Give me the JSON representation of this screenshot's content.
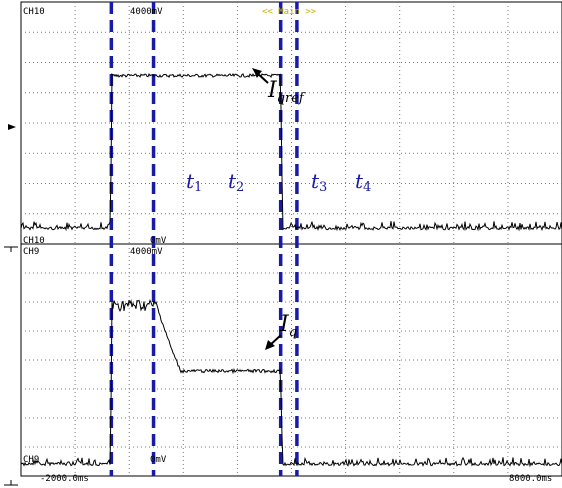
{
  "header": {
    "mode": "<< Main >>"
  },
  "chart_data": [
    {
      "type": "line",
      "channel": "CH10",
      "scale_label": "4000mV",
      "zero_label": "0mV",
      "annotation": {
        "symbol": "I",
        "sub": "qref"
      },
      "ylim": [
        0,
        1
      ],
      "xlim": [
        -2000,
        8000
      ],
      "x": [
        -2000,
        -340,
        -330,
        2800,
        2810,
        2840,
        8000
      ],
      "values": [
        0.02,
        0.02,
        0.85,
        0.85,
        0.55,
        0.02,
        0.02
      ]
    },
    {
      "type": "line",
      "channel": "CH9",
      "scale_label": "4000mV",
      "zero_label": "0mV",
      "annotation": {
        "symbol": "I",
        "sub": "q"
      },
      "ylim": [
        0,
        1
      ],
      "xlim": [
        -2000,
        8000
      ],
      "x": [
        -2000,
        -340,
        -330,
        500,
        800,
        950,
        2800,
        2810,
        2840,
        8000
      ],
      "values": [
        0.02,
        0.02,
        0.84,
        0.84,
        0.6,
        0.5,
        0.5,
        0.3,
        0.02,
        0.02
      ]
    }
  ],
  "time_markers": [
    {
      "symbol": "t",
      "sub": "1",
      "time": -330
    },
    {
      "symbol": "t",
      "sub": "2",
      "time": 450
    },
    {
      "symbol": "t",
      "sub": "3",
      "time": 2800
    },
    {
      "symbol": "t",
      "sub": "4",
      "time": 3100
    }
  ],
  "x_axis": {
    "left_label": "-2000.0ms",
    "right_label": "8000.0ms"
  },
  "colors": {
    "trace": "#000000",
    "marker": "#1a1aa8",
    "grid": "#7a7a7a",
    "mode_text": "#c8b400"
  }
}
